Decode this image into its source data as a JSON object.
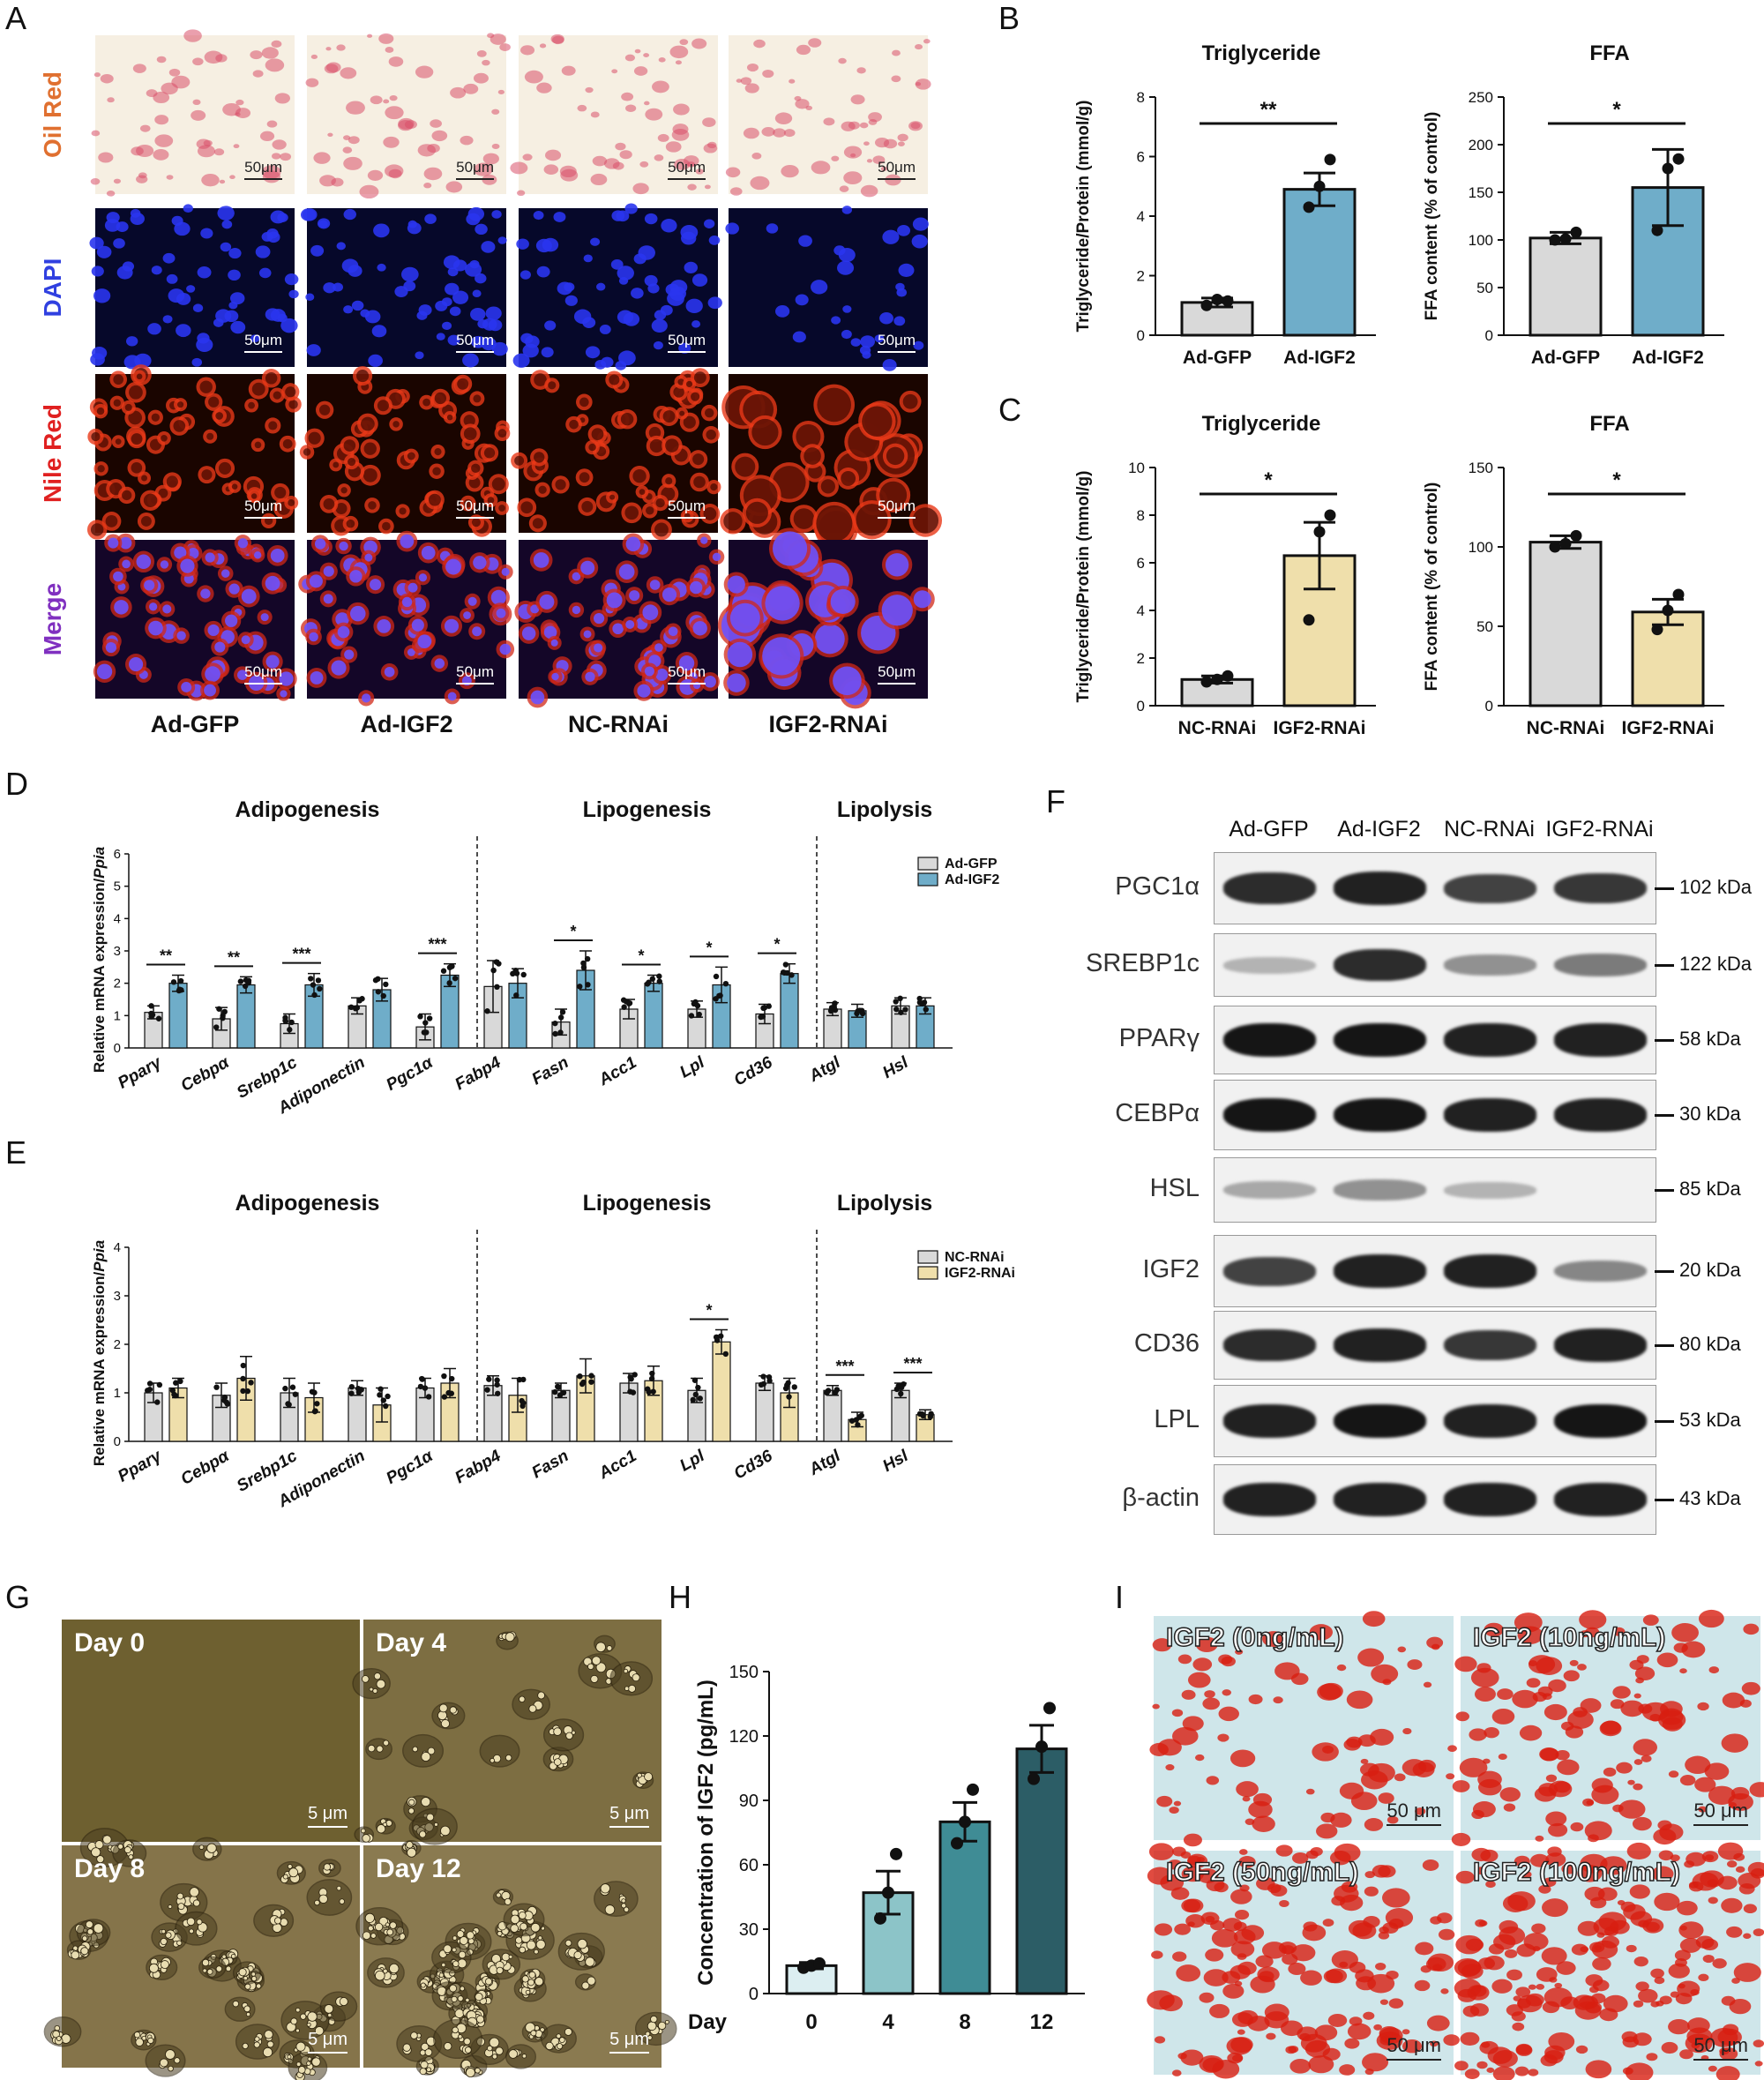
{
  "panel_letters": {
    "A": "A",
    "B": "B",
    "C": "C",
    "D": "D",
    "E": "E",
    "F": "F",
    "G": "G",
    "H": "H",
    "I": "I"
  },
  "panelA": {
    "rows": [
      "Oil Red",
      "DAPI",
      "Nile Red",
      "Merge"
    ],
    "row_colors": [
      "#e07030",
      "#3040e0",
      "#e02020",
      "#8030c0"
    ],
    "columns": [
      "Ad-GFP",
      "Ad-IGF2",
      "NC-RNAi",
      "IGF2-RNAi"
    ],
    "scale": "50μm"
  },
  "panelB": {
    "tg_title": "Triglyceride",
    "tg_ylabel": "Triglyceride/Protein (mmol/g)",
    "tg_sig": "**",
    "ffa_title": "FFA",
    "ffa_ylabel": "FFA content (% of control)",
    "ffa_sig": "*"
  },
  "panelC": {
    "tg_title": "Triglyceride",
    "tg_ylabel": "Triglyceride/Protein (mmol/g)",
    "tg_sig": "*",
    "ffa_title": "FFA",
    "ffa_ylabel": "FFA content (% of control)",
    "ffa_sig": "*"
  },
  "panelD": {
    "groups": [
      "Adipogenesis",
      "Lipogenesis",
      "Lipolysis"
    ],
    "ylabel_main": "Relative mRNA expression/",
    "ylabel_italic": "Ppia",
    "legend": [
      "Ad-GFP",
      "Ad-IGF2"
    ]
  },
  "panelE": {
    "groups": [
      "Adipogenesis",
      "Lipogenesis",
      "Lipolysis"
    ],
    "ylabel_main": "Relative mRNA expression/",
    "ylabel_italic": "Ppia",
    "legend": [
      "NC-RNAi",
      "IGF2-RNAi"
    ]
  },
  "panelF": {
    "columns": [
      "Ad-GFP",
      "Ad-IGF2",
      "NC-RNAi",
      "IGF2-RNAi"
    ],
    "rows": [
      {
        "protein": "PGC1α",
        "kda": "102 kDa",
        "intensity": [
          0.85,
          0.9,
          0.75,
          0.8
        ]
      },
      {
        "protein": "SREBP1c",
        "kda": "122 kDa",
        "intensity": [
          0.25,
          0.85,
          0.4,
          0.5
        ]
      },
      {
        "protein": "PPARγ",
        "kda": "58 kDa",
        "intensity": [
          0.95,
          0.95,
          0.9,
          0.9
        ]
      },
      {
        "protein": "CEBPα",
        "kda": "30 kDa",
        "intensity": [
          0.95,
          0.95,
          0.9,
          0.9
        ]
      },
      {
        "protein": "HSL",
        "kda": "85 kDa",
        "intensity": [
          0.3,
          0.4,
          0.25,
          0.0
        ]
      },
      {
        "protein": "IGF2",
        "kda": "20 kDa",
        "intensity": [
          0.75,
          0.9,
          0.9,
          0.45
        ]
      },
      {
        "protein": "CD36",
        "kda": "80 kDa",
        "intensity": [
          0.85,
          0.9,
          0.8,
          0.9
        ]
      },
      {
        "protein": "LPL",
        "kda": "53 kDa",
        "intensity": [
          0.9,
          0.95,
          0.9,
          0.95
        ]
      },
      {
        "protein": "β-actin",
        "kda": "43 kDa",
        "intensity": [
          0.9,
          0.9,
          0.9,
          0.9
        ]
      }
    ]
  },
  "panelG": {
    "days": [
      "Day 0",
      "Day 4",
      "Day 8",
      "Day 12"
    ],
    "scale": "5 μm"
  },
  "panelH": {
    "ylabel": "Concentration of IGF2 (pg/mL)",
    "xlabel": "Day"
  },
  "panelI": {
    "labels": [
      "IGF2 (0ng/mL)",
      "IGF2 (10ng/mL)",
      "IGF2 (50ng/mL)",
      "IGF2 (100ng/mL)"
    ],
    "scale": "50 μm"
  },
  "chart_data": [
    {
      "id": "B-tg",
      "type": "bar",
      "title": "Triglyceride",
      "ylabel": "Triglyceride/Protein (mmol/g)",
      "categories": [
        "Ad-GFP",
        "Ad-IGF2"
      ],
      "values": [
        1.1,
        4.9
      ],
      "errors": [
        0.15,
        0.55
      ],
      "points": [
        [
          1.0,
          1.2,
          1.15
        ],
        [
          4.3,
          5.0,
          5.9
        ]
      ],
      "ylim": [
        0,
        8
      ],
      "yticks": [
        0,
        2,
        4,
        6,
        8
      ],
      "colors": [
        "#d9d9d9",
        "#6fadc9"
      ],
      "significance": "**"
    },
    {
      "id": "B-ffa",
      "type": "bar",
      "title": "FFA",
      "ylabel": "FFA content (% of control)",
      "categories": [
        "Ad-GFP",
        "Ad-IGF2"
      ],
      "values": [
        102,
        155
      ],
      "errors": [
        6,
        40
      ],
      "points": [
        [
          100,
          101,
          108
        ],
        [
          110,
          175,
          185
        ]
      ],
      "ylim": [
        0,
        250
      ],
      "yticks": [
        0,
        50,
        100,
        150,
        200,
        250
      ],
      "colors": [
        "#d9d9d9",
        "#6fadc9"
      ],
      "significance": "*"
    },
    {
      "id": "C-tg",
      "type": "bar",
      "title": "Triglyceride",
      "ylabel": "Triglyceride/Protein (mmol/g)",
      "categories": [
        "NC-RNAi",
        "IGF2-RNAi"
      ],
      "values": [
        1.1,
        6.3
      ],
      "errors": [
        0.15,
        1.4
      ],
      "points": [
        [
          1.0,
          1.1,
          1.25
        ],
        [
          3.6,
          7.3,
          8.0
        ]
      ],
      "ylim": [
        0,
        10
      ],
      "yticks": [
        0,
        2,
        4,
        6,
        8,
        10
      ],
      "colors": [
        "#d9d9d9",
        "#efdfab"
      ],
      "significance": "*"
    },
    {
      "id": "C-ffa",
      "type": "bar",
      "title": "FFA",
      "ylabel": "FFA content (% of control)",
      "categories": [
        "NC-RNAi",
        "IGF2-RNAi"
      ],
      "values": [
        103,
        59
      ],
      "errors": [
        4,
        8
      ],
      "points": [
        [
          100,
          102,
          107
        ],
        [
          48,
          60,
          70
        ]
      ],
      "ylim": [
        0,
        150
      ],
      "yticks": [
        0,
        50,
        100,
        150
      ],
      "colors": [
        "#d9d9d9",
        "#efdfab"
      ],
      "significance": "*"
    },
    {
      "id": "D",
      "type": "bar",
      "ylabel": "Relative mRNA expression/Ppia",
      "categories": [
        "Pparγ",
        "Cebpα",
        "Srebp1c",
        "Adiponectin",
        "Pgc1α",
        "Fabp4",
        "Fasn",
        "Acc1",
        "Lpl",
        "Cd36",
        "Atgl",
        "Hsl"
      ],
      "series": [
        {
          "name": "Ad-GFP",
          "values": [
            1.1,
            0.9,
            0.75,
            1.3,
            0.65,
            1.9,
            0.8,
            1.2,
            1.2,
            1.05,
            1.2,
            1.3
          ],
          "errors": [
            0.2,
            0.35,
            0.3,
            0.25,
            0.4,
            0.8,
            0.4,
            0.3,
            0.25,
            0.3,
            0.2,
            0.25
          ]
        },
        {
          "name": "Ad-IGF2",
          "values": [
            2.0,
            1.95,
            1.95,
            1.8,
            2.25,
            2.0,
            2.4,
            2.0,
            1.95,
            2.3,
            1.15,
            1.3
          ],
          "errors": [
            0.25,
            0.25,
            0.35,
            0.35,
            0.35,
            0.45,
            0.6,
            0.25,
            0.55,
            0.3,
            0.2,
            0.25
          ]
        }
      ],
      "significance": [
        "**",
        "**",
        "***",
        "",
        "***",
        "",
        "*",
        "*",
        "*",
        "*",
        "",
        ""
      ],
      "ylim": [
        0,
        6
      ],
      "yticks": [
        0,
        1,
        2,
        3,
        4,
        5,
        6
      ],
      "colors": [
        "#d9d9d9",
        "#6fadc9"
      ]
    },
    {
      "id": "E",
      "type": "bar",
      "ylabel": "Relative mRNA expression/Ppia",
      "categories": [
        "Pparγ",
        "Cebpα",
        "Srebp1c",
        "Adiponectin",
        "Pgc1α",
        "Fabp4",
        "Fasn",
        "Acc1",
        "Lpl",
        "Cd36",
        "Atgl",
        "Hsl"
      ],
      "series": [
        {
          "name": "NC-RNAi",
          "values": [
            1.0,
            0.95,
            1.0,
            1.1,
            1.1,
            1.15,
            1.05,
            1.2,
            1.05,
            1.2,
            1.05,
            1.05
          ],
          "errors": [
            0.2,
            0.25,
            0.3,
            0.15,
            0.2,
            0.2,
            0.15,
            0.2,
            0.25,
            0.15,
            0.1,
            0.15
          ]
        },
        {
          "name": "IGF2-RNAi",
          "values": [
            1.1,
            1.3,
            0.9,
            0.75,
            1.2,
            0.95,
            1.35,
            1.25,
            2.05,
            1.0,
            0.45,
            0.55
          ],
          "errors": [
            0.2,
            0.45,
            0.3,
            0.35,
            0.3,
            0.35,
            0.35,
            0.3,
            0.25,
            0.3,
            0.15,
            0.1
          ]
        }
      ],
      "significance": [
        "",
        "",
        "",
        "",
        "",
        "",
        "",
        "",
        "*",
        "",
        "***",
        "***"
      ],
      "ylim": [
        0,
        4
      ],
      "yticks": [
        0,
        1,
        2,
        3,
        4
      ],
      "colors": [
        "#d9d9d9",
        "#efdfab"
      ]
    },
    {
      "id": "H",
      "type": "bar",
      "ylabel": "Concentration of IGF2 (pg/mL)",
      "xlabel": "Day",
      "categories": [
        "0",
        "4",
        "8",
        "12"
      ],
      "values": [
        13,
        47,
        80,
        114
      ],
      "errors": [
        1.5,
        10,
        9,
        11
      ],
      "points": [
        [
          12,
          13,
          14
        ],
        [
          35,
          47,
          65
        ],
        [
          70,
          80,
          95
        ],
        [
          100,
          115,
          133
        ]
      ],
      "ylim": [
        0,
        150
      ],
      "yticks": [
        0,
        30,
        60,
        90,
        120,
        150
      ],
      "colors": [
        "#dceef1",
        "#8cc4c8",
        "#3f8c95",
        "#2c5d66"
      ]
    }
  ]
}
